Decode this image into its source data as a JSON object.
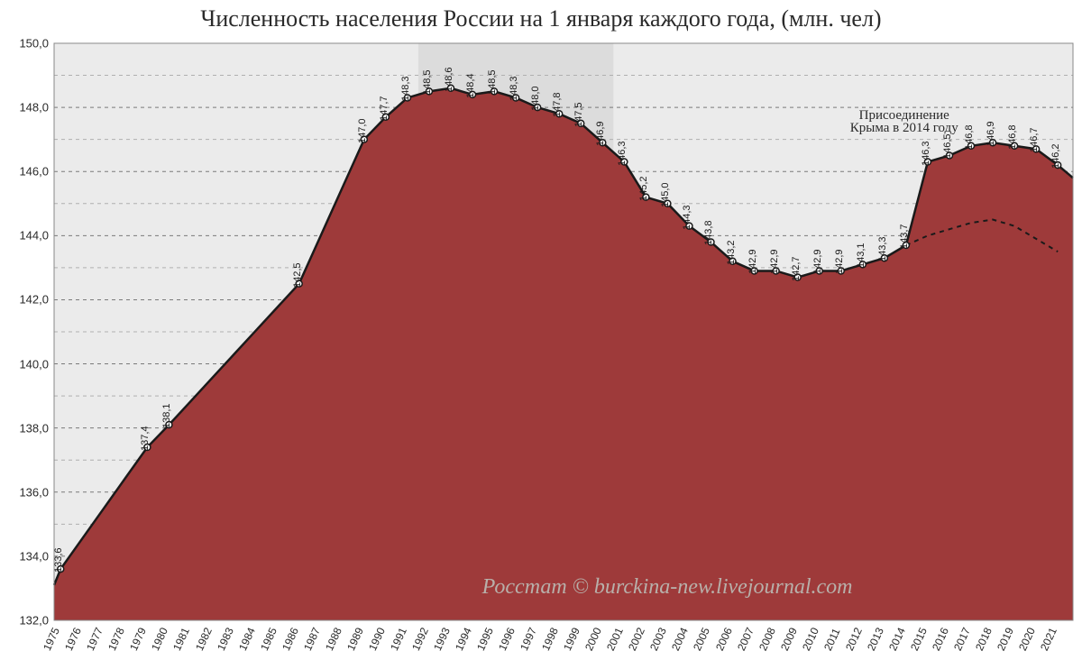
{
  "title": "Численность населения России на 1 января каждого года, (млн. чел)",
  "chart": {
    "type": "area",
    "background_color": "#ebebeb",
    "area_color": "#9e3a3a",
    "line_color": "#1a1a1a",
    "line_width": 2.5,
    "marker_fill": "#ffffff",
    "marker_stroke": "#1a1a1a",
    "marker_radius": 3.5,
    "grid_color_major": "#7a7a7a",
    "grid_color_minor": "#b0b0b0",
    "grid_dash": "4 4",
    "highlight_band_color": "#dcdcdc",
    "highlight_band_years": [
      1992,
      2000
    ],
    "ylim": [
      132.0,
      150.0
    ],
    "ytick_step": 2.0,
    "yticks": [
      "132,0",
      "134,0",
      "136,0",
      "138,0",
      "140,0",
      "142,0",
      "144,0",
      "146,0",
      "148,0",
      "150,0"
    ],
    "x_years": [
      1975,
      1976,
      1977,
      1978,
      1979,
      1980,
      1981,
      1982,
      1983,
      1984,
      1985,
      1986,
      1987,
      1988,
      1989,
      1990,
      1991,
      1992,
      1993,
      1994,
      1995,
      1996,
      1997,
      1998,
      1999,
      2000,
      2001,
      2002,
      2003,
      2004,
      2005,
      2006,
      2007,
      2008,
      2009,
      2010,
      2011,
      2012,
      2013,
      2014,
      2015,
      2016,
      2017,
      2018,
      2019,
      2020,
      2021
    ],
    "values": [
      133.6,
      null,
      null,
      null,
      137.4,
      138.1,
      null,
      null,
      null,
      null,
      null,
      142.5,
      null,
      null,
      147.0,
      147.7,
      148.3,
      148.5,
      148.6,
      148.4,
      148.5,
      148.3,
      148.0,
      147.8,
      147.5,
      146.9,
      146.3,
      145.2,
      145.0,
      144.3,
      143.8,
      143.2,
      142.9,
      142.9,
      142.7,
      142.9,
      142.9,
      143.1,
      143.3,
      143.7,
      146.3,
      146.5,
      146.8,
      146.9,
      146.8,
      146.7,
      146.2
    ],
    "value_labels": [
      "133,6",
      null,
      null,
      null,
      "137,4",
      "138,1",
      null,
      null,
      null,
      null,
      null,
      "142,5",
      null,
      null,
      "147,0",
      "147,7",
      "148,3",
      "148,5",
      "148,6",
      "148,4",
      "148,5",
      "148,3",
      "148,0",
      "147,8",
      "147,5",
      "146,9",
      "146,3",
      "145,2",
      "145,0",
      "144,3",
      "143,8",
      "143,2",
      "142,9",
      "142,9",
      "142,7",
      "142,9",
      "142,9",
      "143,1",
      "143,3",
      "143,7",
      "146,3",
      "146,5",
      "146,8",
      "146,9",
      "146,8",
      "146,7",
      "146,2"
    ],
    "second_line": {
      "dash": "5 5",
      "color": "#1a1a1a",
      "width": 2,
      "start_year": 2014,
      "values_from_2014": [
        143.7,
        144.0,
        144.2,
        144.4,
        144.5,
        144.3,
        143.9,
        143.5
      ]
    },
    "title_fontsize": 26,
    "label_fontsize": 12,
    "data_label_fontsize": 11
  },
  "annotation": {
    "line1": "Присоединение",
    "line2": "Крыма в 2014 году"
  },
  "watermark": "Росстат © burckina-new.livejournal.com"
}
